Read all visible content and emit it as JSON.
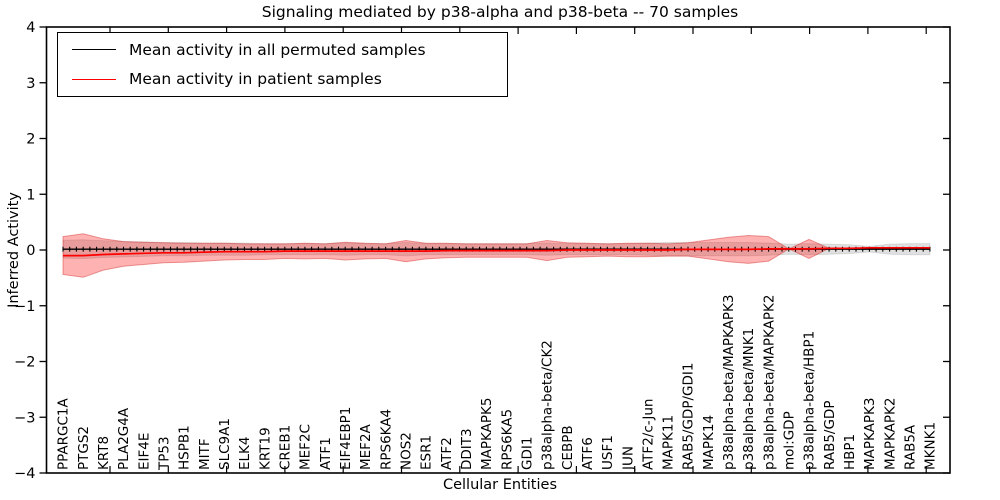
{
  "figure": {
    "title": "Signaling mediated by p38-alpha and p38-beta -- 70 samples",
    "xlabel": "Cellular Entities",
    "ylabel": "Inferred Activity"
  },
  "legend": {
    "items": [
      {
        "label": "Mean activity in all permuted samples",
        "color": "#000000"
      },
      {
        "label": "Mean activity in patient samples",
        "color": "#ff0000"
      }
    ]
  },
  "chart_data": {
    "type": "line",
    "title": "Signaling mediated by p38-alpha and p38-beta -- 70 samples",
    "xlabel": "Cellular Entities",
    "ylabel": "Inferred Activity",
    "ylim": [
      -4,
      4
    ],
    "yticks": [
      -4,
      -3,
      -2,
      -1,
      0,
      1,
      2,
      3,
      4
    ],
    "grid": false,
    "legend_position": "upper left",
    "categories": [
      "PPARGC1A",
      "PTGS2",
      "KRT8",
      "PLA2G4A",
      "EIF4E",
      "TP53",
      "HSPB1",
      "MITF",
      "SLC9A1",
      "ELK4",
      "KRT19",
      "CREB1",
      "MEF2C",
      "ATF1",
      "EIF4EBP1",
      "MEF2A",
      "RPS6KA4",
      "NOS2",
      "ESR1",
      "ATF2",
      "DDIT3",
      "MAPKAPK5",
      "RPS6KA5",
      "GDI1",
      "p38alpha-beta/CK2",
      "CEBPB",
      "ATF6",
      "USF1",
      "JUN",
      "ATF2/c-Jun",
      "MAPK11",
      "RAB5/GDP/GDI1",
      "MAPK14",
      "p38alpha-beta/MAPKAPK3",
      "p38alpha-beta/MNK1",
      "p38alpha-beta/MAPKAPK2",
      "mol:GDP",
      "p38alpha-beta/HBP1",
      "RAB5/GDP",
      "HBP1",
      "MAPKAPK3",
      "MAPKAPK2",
      "RAB5A",
      "MKNK1"
    ],
    "series": [
      {
        "name": "Mean activity in all permuted samples",
        "color": "#000000",
        "band_color": "rgba(0,0,0,0.12)",
        "values": [
          0.015,
          0.015,
          0.015,
          0.015,
          0.015,
          0.015,
          0.015,
          0.015,
          0.015,
          0.015,
          0.015,
          0.015,
          0.015,
          0.015,
          0.015,
          0.015,
          0.015,
          0.015,
          0.015,
          0.015,
          0.015,
          0.015,
          0.015,
          0.015,
          0.015,
          0.015,
          0.015,
          0.015,
          0.015,
          0.015,
          0.015,
          0.015,
          0.015,
          0.015,
          0.015,
          0.015,
          0.015,
          0.015,
          0.015,
          0.015,
          0.015,
          0.015,
          0.015,
          0.015
        ],
        "std": [
          0.16,
          0.17,
          0.15,
          0.14,
          0.13,
          0.12,
          0.12,
          0.11,
          0.11,
          0.11,
          0.1,
          0.1,
          0.1,
          0.1,
          0.11,
          0.1,
          0.1,
          0.12,
          0.1,
          0.1,
          0.1,
          0.1,
          0.1,
          0.1,
          0.11,
          0.1,
          0.1,
          0.1,
          0.1,
          0.11,
          0.12,
          0.12,
          0.12,
          0.12,
          0.12,
          0.11,
          0.09,
          0.1,
          0.09,
          0.08,
          0.05,
          0.09,
          0.1,
          0.1
        ]
      },
      {
        "name": "Mean activity in patient samples",
        "color": "#ff0000",
        "band_color": "rgba(255,0,0,0.30)",
        "values": [
          -0.1,
          -0.1,
          -0.08,
          -0.07,
          -0.06,
          -0.05,
          -0.05,
          -0.04,
          -0.03,
          -0.03,
          -0.03,
          -0.02,
          -0.02,
          -0.02,
          -0.02,
          -0.02,
          -0.02,
          -0.02,
          -0.02,
          -0.01,
          -0.01,
          -0.01,
          -0.01,
          -0.01,
          -0.01,
          0.0,
          0.0,
          0.0,
          0.0,
          0.0,
          0.0,
          0.01,
          0.01,
          0.01,
          0.01,
          0.02,
          0.02,
          0.02,
          0.03,
          0.03,
          0.04,
          0.04,
          0.04,
          0.04
        ],
        "std": [
          0.34,
          0.39,
          0.28,
          0.22,
          0.2,
          0.18,
          0.17,
          0.16,
          0.15,
          0.14,
          0.14,
          0.13,
          0.14,
          0.13,
          0.16,
          0.14,
          0.13,
          0.19,
          0.14,
          0.13,
          0.12,
          0.12,
          0.12,
          0.12,
          0.18,
          0.13,
          0.12,
          0.11,
          0.12,
          0.12,
          0.11,
          0.12,
          0.17,
          0.22,
          0.25,
          0.22,
          0.0,
          0.17,
          0.0,
          0.0,
          0.0,
          0.0,
          0.0,
          0.0
        ]
      }
    ]
  }
}
